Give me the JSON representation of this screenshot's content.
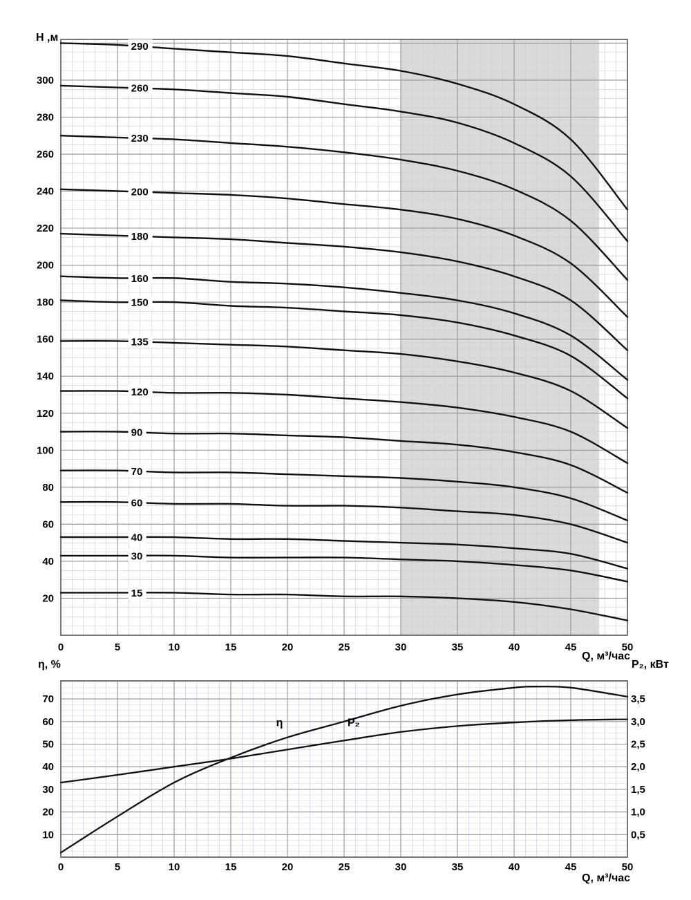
{
  "labels": {
    "h_axis": "H ,м",
    "q_axis": "Q, м³/час",
    "eta_axis": "η, %",
    "p2_axis": "P₂, кВт"
  },
  "colors": {
    "curve": "#111111",
    "grid_major": "#9b9b9b",
    "grid_minor_top": "#cccccc",
    "grid_minor_bottom_v": "#c3c3d9",
    "grid_minor_bottom_h": "#d9d9e4",
    "frame": "#555555",
    "band": "#dadada",
    "text": "#000000"
  },
  "chart_data": [
    {
      "type": "line",
      "title": "",
      "xlabel": "Q, м³/час",
      "ylabel": "H ,м",
      "xlim": [
        0,
        50
      ],
      "ylim": [
        0,
        322
      ],
      "x_ticks": [
        0,
        5,
        10,
        15,
        20,
        25,
        30,
        35,
        40,
        45,
        50
      ],
      "y_ticks": [
        20,
        40,
        60,
        80,
        100,
        120,
        140,
        160,
        180,
        200,
        220,
        240,
        260,
        280,
        300
      ],
      "grid": true,
      "operating_band": {
        "q_start": 30,
        "q_end": 47.5
      },
      "q": [
        0,
        5,
        10,
        15,
        20,
        25,
        30,
        35,
        40,
        45,
        50
      ],
      "series": [
        {
          "label": "290",
          "values": [
            320,
            319,
            317,
            315,
            313,
            309,
            305,
            298,
            287,
            268,
            230
          ]
        },
        {
          "label": "260",
          "values": [
            297,
            296,
            295,
            293,
            291,
            287,
            283,
            277,
            266,
            248,
            213
          ]
        },
        {
          "label": "230",
          "values": [
            270,
            269,
            268,
            266,
            264,
            261,
            257,
            251,
            241,
            224,
            192
          ]
        },
        {
          "label": "200",
          "values": [
            241,
            240,
            239,
            238,
            236,
            233,
            230,
            225,
            216,
            201,
            172
          ]
        },
        {
          "label": "180",
          "values": [
            217,
            216,
            215,
            214,
            212,
            210,
            207,
            202,
            194,
            181,
            154
          ]
        },
        {
          "label": "160",
          "values": [
            194,
            193,
            193,
            191,
            190,
            188,
            185,
            181,
            174,
            162,
            138
          ]
        },
        {
          "label": "150",
          "values": [
            181,
            180,
            180,
            178,
            177,
            175,
            173,
            169,
            162,
            151,
            128
          ]
        },
        {
          "label": "135",
          "values": [
            159,
            159,
            158,
            157,
            156,
            154,
            152,
            148,
            142,
            132,
            112
          ]
        },
        {
          "label": "120",
          "values": [
            132,
            132,
            131,
            131,
            130,
            128,
            126,
            123,
            118,
            110,
            93
          ]
        },
        {
          "label": "90",
          "values": [
            110,
            110,
            109,
            109,
            108,
            107,
            105,
            103,
            99,
            92,
            77
          ]
        },
        {
          "label": "70",
          "values": [
            89,
            89,
            88,
            88,
            87,
            86,
            85,
            83,
            80,
            74,
            62
          ]
        },
        {
          "label": "60",
          "values": [
            72,
            72,
            71,
            71,
            70,
            70,
            69,
            67,
            65,
            60,
            50
          ]
        },
        {
          "label": "40",
          "values": [
            53,
            53,
            53,
            52,
            52,
            51,
            50,
            49,
            47,
            44,
            36
          ]
        },
        {
          "label": "30",
          "values": [
            43,
            43,
            43,
            42,
            42,
            42,
            41,
            40,
            38,
            35,
            29
          ]
        },
        {
          "label": "15",
          "values": [
            23,
            23,
            23,
            22,
            22,
            21,
            21,
            20,
            18,
            14,
            8
          ]
        }
      ]
    },
    {
      "type": "line",
      "title": "",
      "xlabel": "Q, м³/час",
      "x_ticks": [
        0,
        5,
        10,
        15,
        20,
        25,
        30,
        35,
        40,
        45,
        50
      ],
      "xlim": [
        0,
        50
      ],
      "grid": true,
      "left_axis": {
        "label": "η, %",
        "ticks": [
          10,
          20,
          30,
          40,
          50,
          60,
          70
        ],
        "min": 0,
        "max": 78
      },
      "right_axis": {
        "label": "P₂, кВт",
        "ticks": [
          "0,5",
          "1,0",
          "1,5",
          "2,0",
          "2,5",
          "3,0",
          "3,5"
        ],
        "tick_values": [
          0.5,
          1.0,
          1.5,
          2.0,
          2.5,
          3.0,
          3.5
        ],
        "min": 0,
        "max": 3.9
      },
      "series": [
        {
          "name": "η",
          "axis": "left",
          "q": [
            0,
            5,
            10,
            15,
            20,
            25,
            30,
            35,
            40,
            42,
            45,
            50
          ],
          "values": [
            2,
            18,
            33,
            44,
            53,
            60,
            67,
            72,
            75,
            75.5,
            75,
            71
          ],
          "label_pos": {
            "q": 19,
            "v": 58
          }
        },
        {
          "name": "P₂",
          "axis": "right",
          "q": [
            0,
            5,
            10,
            15,
            20,
            25,
            30,
            35,
            40,
            45,
            50
          ],
          "values": [
            1.65,
            1.82,
            2.0,
            2.18,
            2.38,
            2.58,
            2.77,
            2.9,
            2.98,
            3.03,
            3.05
          ],
          "label_pos": {
            "q": 25.3,
            "v": 2.9
          }
        }
      ]
    }
  ]
}
